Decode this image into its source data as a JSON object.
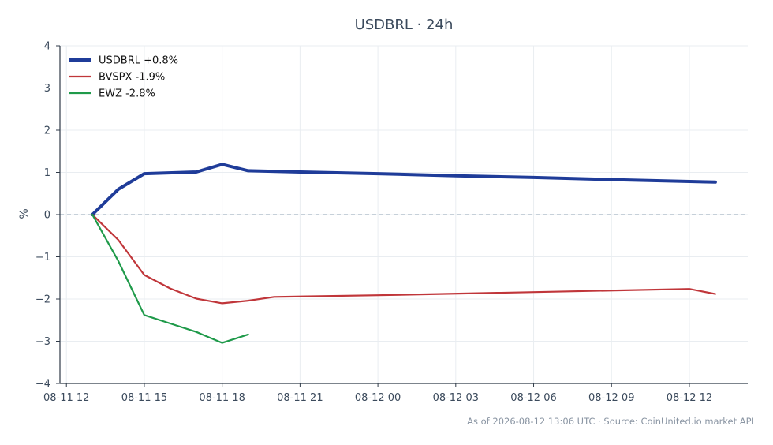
{
  "chart_data": {
    "type": "line",
    "title": "USDBRL · 24h",
    "xlabel": "",
    "ylabel": "%",
    "ylim": [
      -4,
      4
    ],
    "xlim_hours": [
      -0.25,
      26.25
    ],
    "y_ticks": [
      4,
      3,
      2,
      1,
      0,
      -1,
      -2,
      -3,
      -4
    ],
    "y_tick_labels": [
      "4",
      "3",
      "2",
      "1",
      "0",
      "−1",
      "−2",
      "−3",
      "−4"
    ],
    "x_ticks": [
      {
        "hour": 0,
        "label": "08-11 12"
      },
      {
        "hour": 3,
        "label": "08-11 15"
      },
      {
        "hour": 6,
        "label": "08-11 18"
      },
      {
        "hour": 9,
        "label": "08-11 21"
      },
      {
        "hour": 12,
        "label": "08-12 00"
      },
      {
        "hour": 15,
        "label": "08-12 03"
      },
      {
        "hour": 18,
        "label": "08-12 06"
      },
      {
        "hour": 21,
        "label": "08-12 09"
      },
      {
        "hour": 24,
        "label": "08-12 12"
      }
    ],
    "zero_line": true,
    "grid": true,
    "legend_position": "top-left",
    "series": [
      {
        "name": "USDBRL +0.8%",
        "color": "#1f3c99",
        "width": 4,
        "points": [
          [
            1,
            0
          ],
          [
            2,
            0.6
          ],
          [
            3,
            0.97
          ],
          [
            5,
            1.01
          ],
          [
            6,
            1.19
          ],
          [
            7,
            1.04
          ],
          [
            9,
            1.01
          ],
          [
            12,
            0.97
          ],
          [
            15,
            0.92
          ],
          [
            18,
            0.88
          ],
          [
            21,
            0.83
          ],
          [
            25,
            0.77
          ]
        ]
      },
      {
        "name": "BVSPX -1.9%",
        "color": "#c0363a",
        "width": 2.2,
        "points": [
          [
            1,
            0
          ],
          [
            2,
            -0.6
          ],
          [
            3,
            -1.43
          ],
          [
            4,
            -1.75
          ],
          [
            5,
            -1.99
          ],
          [
            6,
            -2.1
          ],
          [
            7,
            -2.04
          ],
          [
            8,
            -1.95
          ],
          [
            12,
            -1.91
          ],
          [
            24,
            -1.76
          ],
          [
            25,
            -1.88
          ]
        ]
      },
      {
        "name": "EWZ -2.8%",
        "color": "#1f9a4a",
        "width": 2.2,
        "points": [
          [
            1,
            0
          ],
          [
            2,
            -1.1
          ],
          [
            3,
            -2.38
          ],
          [
            4,
            -2.58
          ],
          [
            5,
            -2.78
          ],
          [
            6,
            -3.04
          ],
          [
            7,
            -2.84
          ]
        ]
      }
    ]
  },
  "footer": "As of 2026-08-12 13:06 UTC · Source: CoinUnited.io market API"
}
